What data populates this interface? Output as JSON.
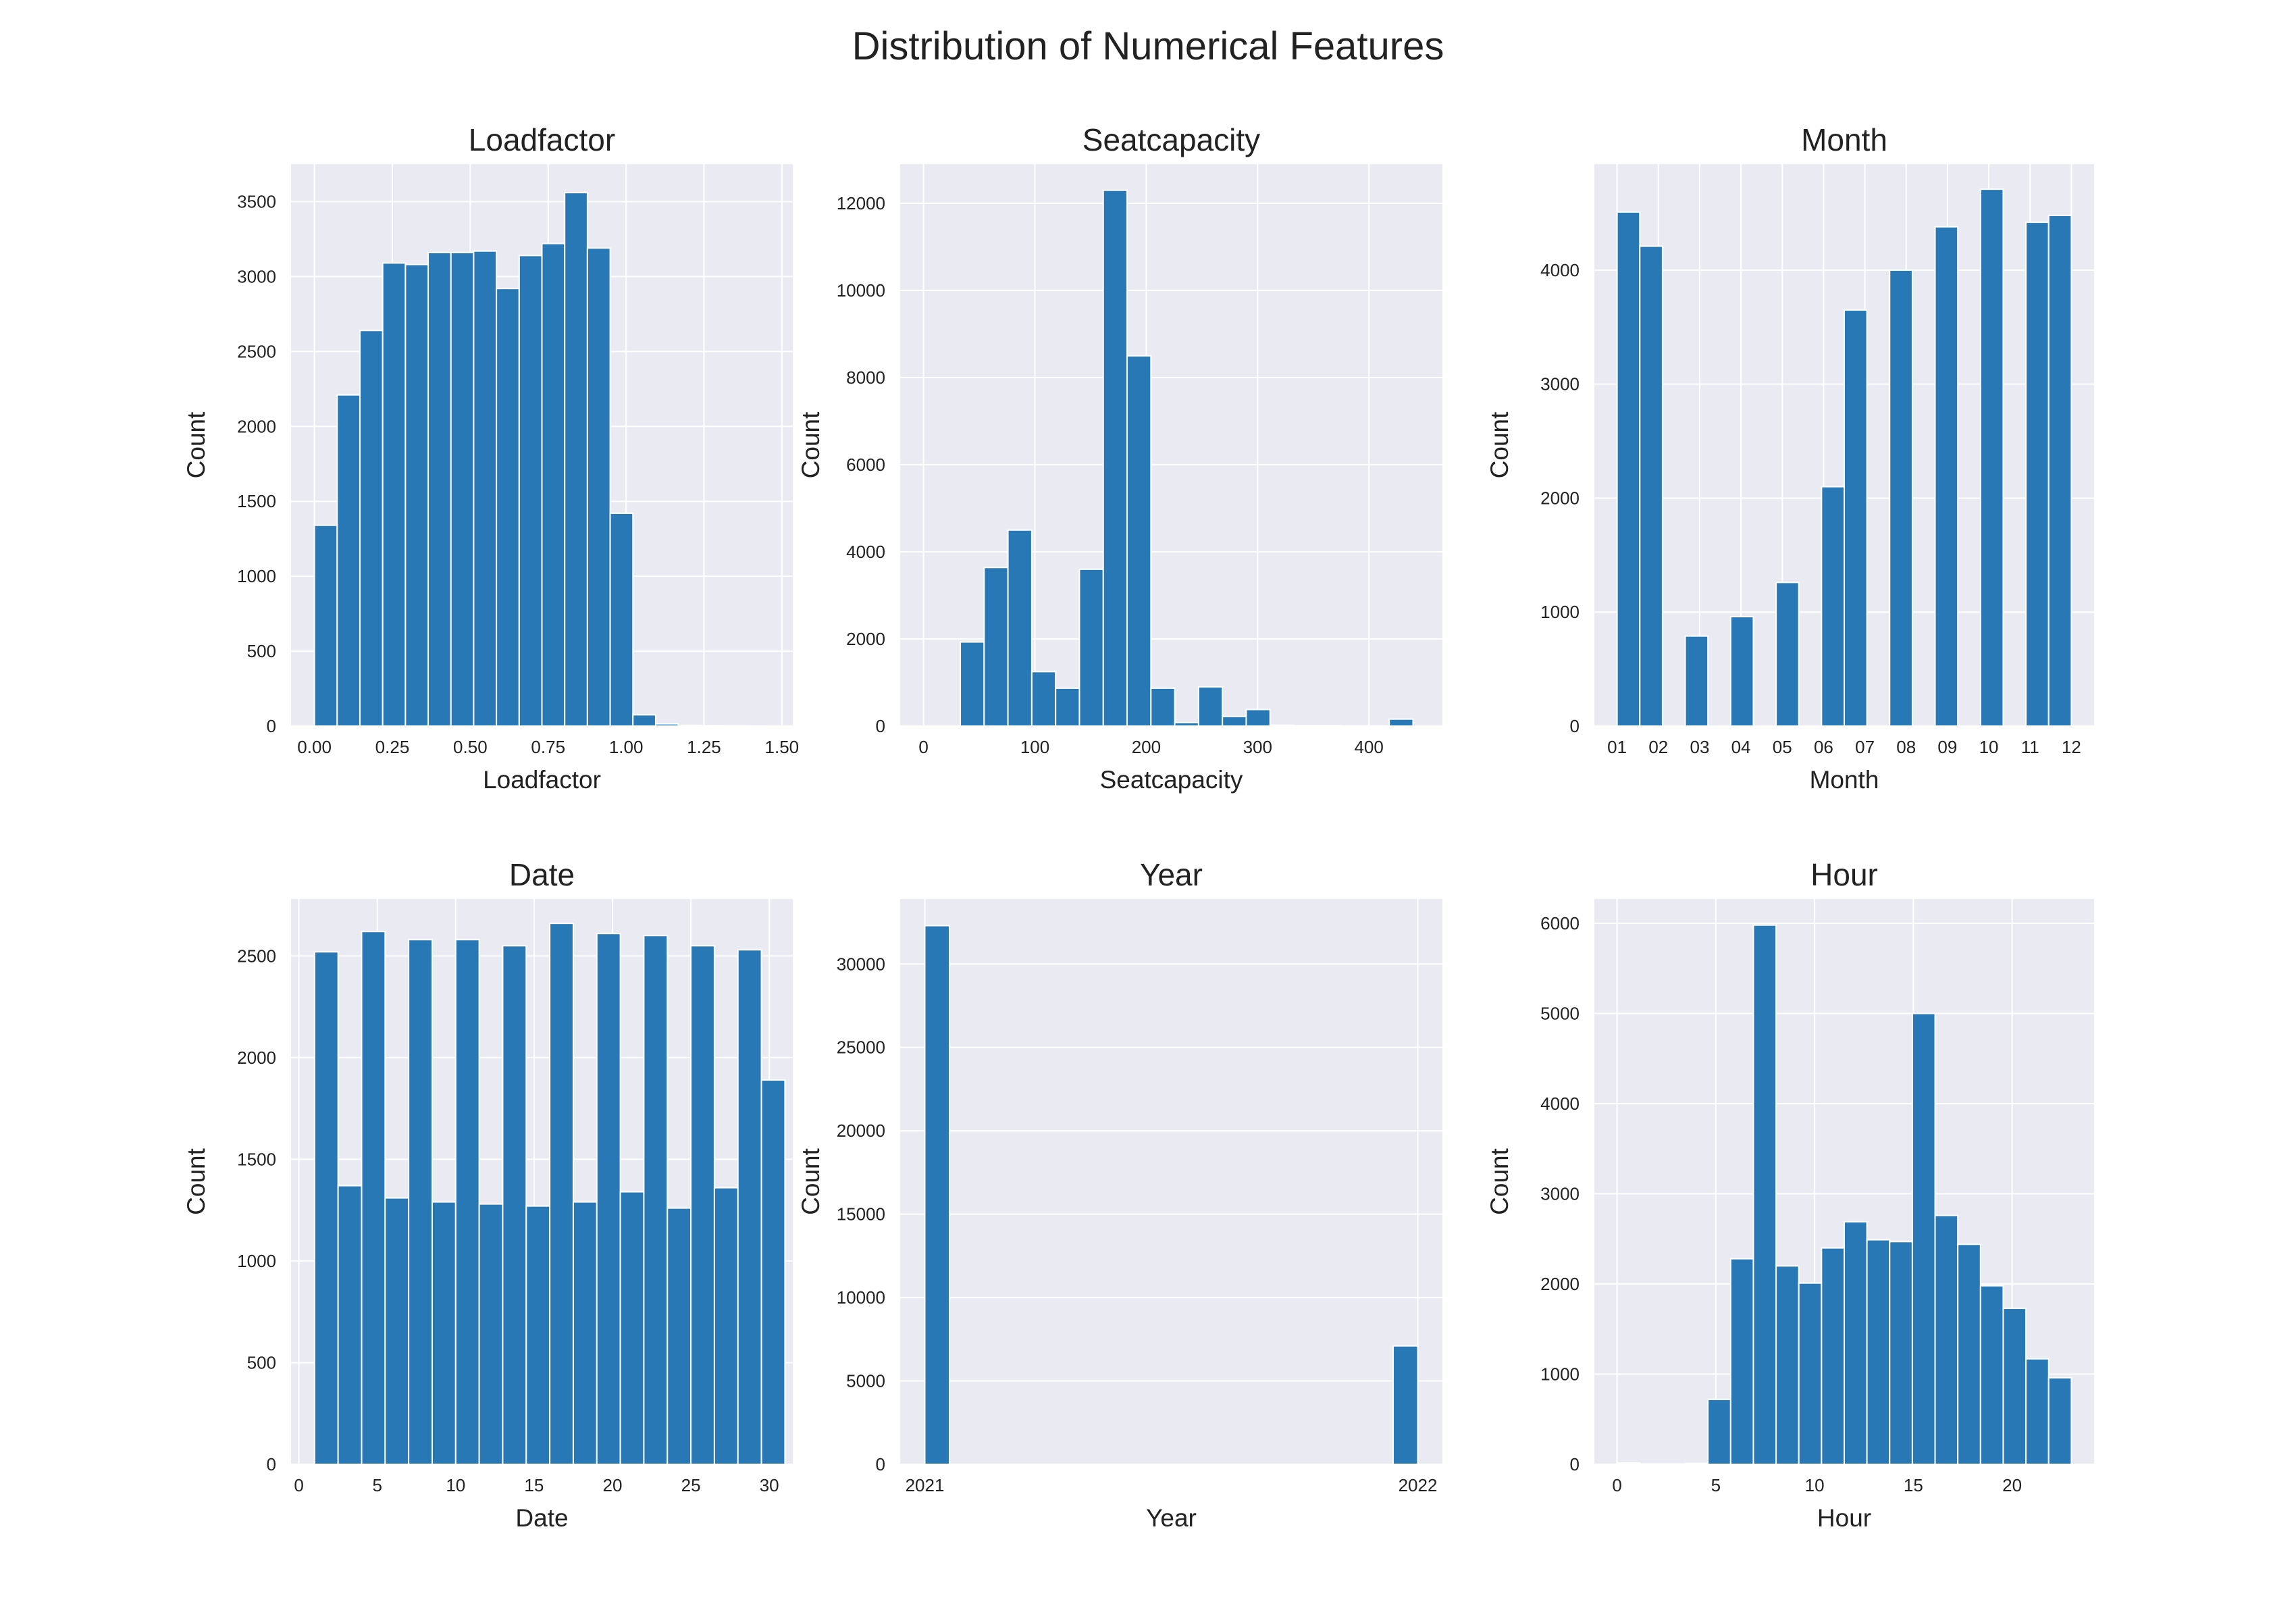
{
  "figure": {
    "title": "Distribution of Numerical Features"
  },
  "chart_data": [
    {
      "type": "bar",
      "title": "Loadfactor",
      "xlabel": "Loadfactor",
      "ylabel": "Count",
      "xlim": [
        -0.075,
        1.535
      ],
      "ylim": [
        0,
        3750
      ],
      "xticks": [
        {
          "v": 0.0,
          "label": "0.00"
        },
        {
          "v": 0.25,
          "label": "0.25"
        },
        {
          "v": 0.5,
          "label": "0.50"
        },
        {
          "v": 0.75,
          "label": "0.75"
        },
        {
          "v": 1.0,
          "label": "1.00"
        },
        {
          "v": 1.25,
          "label": "1.25"
        },
        {
          "v": 1.5,
          "label": "1.50"
        }
      ],
      "yticks": [
        {
          "v": 0,
          "label": "0"
        },
        {
          "v": 500,
          "label": "500"
        },
        {
          "v": 1000,
          "label": "1000"
        },
        {
          "v": 1500,
          "label": "1500"
        },
        {
          "v": 2000,
          "label": "2000"
        },
        {
          "v": 2500,
          "label": "2500"
        },
        {
          "v": 3000,
          "label": "3000"
        },
        {
          "v": 3500,
          "label": "3500"
        }
      ],
      "bins": [
        {
          "x0": 0.0,
          "x1": 0.073,
          "count": 1340
        },
        {
          "x0": 0.073,
          "x1": 0.146,
          "count": 2210
        },
        {
          "x0": 0.146,
          "x1": 0.219,
          "count": 2640
        },
        {
          "x0": 0.219,
          "x1": 0.292,
          "count": 3090
        },
        {
          "x0": 0.292,
          "x1": 0.365,
          "count": 3080
        },
        {
          "x0": 0.365,
          "x1": 0.438,
          "count": 3160
        },
        {
          "x0": 0.438,
          "x1": 0.511,
          "count": 3160
        },
        {
          "x0": 0.511,
          "x1": 0.584,
          "count": 3170
        },
        {
          "x0": 0.584,
          "x1": 0.657,
          "count": 2920
        },
        {
          "x0": 0.657,
          "x1": 0.73,
          "count": 3140
        },
        {
          "x0": 0.73,
          "x1": 0.803,
          "count": 3220
        },
        {
          "x0": 0.803,
          "x1": 0.876,
          "count": 3560
        },
        {
          "x0": 0.876,
          "x1": 0.949,
          "count": 3190
        },
        {
          "x0": 0.949,
          "x1": 1.022,
          "count": 1420
        },
        {
          "x0": 1.022,
          "x1": 1.095,
          "count": 75
        },
        {
          "x0": 1.095,
          "x1": 1.168,
          "count": 15
        },
        {
          "x0": 1.168,
          "x1": 1.241,
          "count": 5
        },
        {
          "x0": 1.241,
          "x1": 1.314,
          "count": 3
        },
        {
          "x0": 1.314,
          "x1": 1.387,
          "count": 2
        },
        {
          "x0": 1.387,
          "x1": 1.46,
          "count": 1
        }
      ]
    },
    {
      "type": "bar",
      "title": "Seatcapacity",
      "xlabel": "Seatcapacity",
      "ylabel": "Count",
      "xlim": [
        -21,
        466
      ],
      "ylim": [
        0,
        12900
      ],
      "xticks": [
        {
          "v": 0,
          "label": "0"
        },
        {
          "v": 100,
          "label": "100"
        },
        {
          "v": 200,
          "label": "200"
        },
        {
          "v": 300,
          "label": "300"
        },
        {
          "v": 400,
          "label": "400"
        }
      ],
      "yticks": [
        {
          "v": 0,
          "label": "0"
        },
        {
          "v": 2000,
          "label": "2000"
        },
        {
          "v": 4000,
          "label": "4000"
        },
        {
          "v": 6000,
          "label": "6000"
        },
        {
          "v": 8000,
          "label": "8000"
        },
        {
          "v": 10000,
          "label": "10000"
        },
        {
          "v": 12000,
          "label": "12000"
        }
      ],
      "bins": [
        {
          "x0": 33,
          "x1": 54.4,
          "count": 1930
        },
        {
          "x0": 54.4,
          "x1": 75.8,
          "count": 3640
        },
        {
          "x0": 75.8,
          "x1": 97.2,
          "count": 4500
        },
        {
          "x0": 97.2,
          "x1": 118.6,
          "count": 1250
        },
        {
          "x0": 118.6,
          "x1": 140,
          "count": 870
        },
        {
          "x0": 140,
          "x1": 161.4,
          "count": 3600
        },
        {
          "x0": 161.4,
          "x1": 182.8,
          "count": 12300
        },
        {
          "x0": 182.8,
          "x1": 204.2,
          "count": 8500
        },
        {
          "x0": 204.2,
          "x1": 225.6,
          "count": 870
        },
        {
          "x0": 225.6,
          "x1": 247,
          "count": 80
        },
        {
          "x0": 247,
          "x1": 268.4,
          "count": 900
        },
        {
          "x0": 268.4,
          "x1": 289.8,
          "count": 220
        },
        {
          "x0": 289.8,
          "x1": 311.2,
          "count": 380
        },
        {
          "x0": 311.2,
          "x1": 332.6,
          "count": 20
        },
        {
          "x0": 332.6,
          "x1": 354,
          "count": 10
        },
        {
          "x0": 354,
          "x1": 375.4,
          "count": 10
        },
        {
          "x0": 375.4,
          "x1": 396.8,
          "count": 5
        },
        {
          "x0": 396.8,
          "x1": 418.2,
          "count": 5
        },
        {
          "x0": 418.2,
          "x1": 439.6,
          "count": 160
        }
      ]
    },
    {
      "type": "bar",
      "title": "Month",
      "xlabel": "Month",
      "ylabel": "Count",
      "xlim": [
        -0.55,
        11.55
      ],
      "ylim": [
        0,
        4930
      ],
      "xticks": [
        {
          "v": 0,
          "label": "01"
        },
        {
          "v": 1,
          "label": "02"
        },
        {
          "v": 2,
          "label": "03"
        },
        {
          "v": 3,
          "label": "04"
        },
        {
          "v": 4,
          "label": "05"
        },
        {
          "v": 5,
          "label": "06"
        },
        {
          "v": 6,
          "label": "07"
        },
        {
          "v": 7,
          "label": "08"
        },
        {
          "v": 8,
          "label": "09"
        },
        {
          "v": 9,
          "label": "10"
        },
        {
          "v": 10,
          "label": "11"
        },
        {
          "v": 11,
          "label": "12"
        }
      ],
      "yticks": [
        {
          "v": 0,
          "label": "0"
        },
        {
          "v": 1000,
          "label": "1000"
        },
        {
          "v": 2000,
          "label": "2000"
        },
        {
          "v": 3000,
          "label": "3000"
        },
        {
          "v": 4000,
          "label": "4000"
        }
      ],
      "bins": [
        {
          "x0": 0.0,
          "x1": 0.55,
          "count": 4510
        },
        {
          "x0": 0.55,
          "x1": 1.1,
          "count": 4210
        },
        {
          "x0": 1.65,
          "x1": 2.2,
          "count": 790
        },
        {
          "x0": 2.75,
          "x1": 3.3,
          "count": 960
        },
        {
          "x0": 3.85,
          "x1": 4.4,
          "count": 1260
        },
        {
          "x0": 4.95,
          "x1": 5.5,
          "count": 2100
        },
        {
          "x0": 5.5,
          "x1": 6.05,
          "count": 3650
        },
        {
          "x0": 6.6,
          "x1": 7.15,
          "count": 4000
        },
        {
          "x0": 7.7,
          "x1": 8.25,
          "count": 4380
        },
        {
          "x0": 8.8,
          "x1": 9.35,
          "count": 4710
        },
        {
          "x0": 9.9,
          "x1": 10.45,
          "count": 4420
        },
        {
          "x0": 10.45,
          "x1": 11.0,
          "count": 4480
        }
      ]
    },
    {
      "type": "bar",
      "title": "Date",
      "xlabel": "Date",
      "ylabel": "Count",
      "xlim": [
        -0.5,
        31.5
      ],
      "ylim": [
        0,
        2780
      ],
      "xticks": [
        {
          "v": 0,
          "label": "0"
        },
        {
          "v": 5,
          "label": "5"
        },
        {
          "v": 10,
          "label": "10"
        },
        {
          "v": 15,
          "label": "15"
        },
        {
          "v": 20,
          "label": "20"
        },
        {
          "v": 25,
          "label": "25"
        },
        {
          "v": 30,
          "label": "30"
        }
      ],
      "yticks": [
        {
          "v": 0,
          "label": "0"
        },
        {
          "v": 500,
          "label": "500"
        },
        {
          "v": 1000,
          "label": "1000"
        },
        {
          "v": 1500,
          "label": "1500"
        },
        {
          "v": 2000,
          "label": "2000"
        },
        {
          "v": 2500,
          "label": "2500"
        }
      ],
      "bins": [
        {
          "x0": 1.0,
          "x1": 2.5,
          "count": 2520
        },
        {
          "x0": 2.5,
          "x1": 4.0,
          "count": 1370
        },
        {
          "x0": 4.0,
          "x1": 5.5,
          "count": 2620
        },
        {
          "x0": 5.5,
          "x1": 7.0,
          "count": 1310
        },
        {
          "x0": 7.0,
          "x1": 8.5,
          "count": 2580
        },
        {
          "x0": 8.5,
          "x1": 10.0,
          "count": 1290
        },
        {
          "x0": 10.0,
          "x1": 11.5,
          "count": 2580
        },
        {
          "x0": 11.5,
          "x1": 13.0,
          "count": 1280
        },
        {
          "x0": 13.0,
          "x1": 14.5,
          "count": 2550
        },
        {
          "x0": 14.5,
          "x1": 16.0,
          "count": 1270
        },
        {
          "x0": 16.0,
          "x1": 17.5,
          "count": 2660
        },
        {
          "x0": 17.5,
          "x1": 19.0,
          "count": 1290
        },
        {
          "x0": 19.0,
          "x1": 20.5,
          "count": 2610
        },
        {
          "x0": 20.5,
          "x1": 22.0,
          "count": 1340
        },
        {
          "x0": 22.0,
          "x1": 23.5,
          "count": 2600
        },
        {
          "x0": 23.5,
          "x1": 25.0,
          "count": 1260
        },
        {
          "x0": 25.0,
          "x1": 26.5,
          "count": 2550
        },
        {
          "x0": 26.5,
          "x1": 28.0,
          "count": 1360
        },
        {
          "x0": 28.0,
          "x1": 29.5,
          "count": 2530
        },
        {
          "x0": 29.5,
          "x1": 31.0,
          "count": 1890
        }
      ]
    },
    {
      "type": "bar",
      "title": "Year",
      "xlabel": "Year",
      "ylabel": "Count",
      "xlim": [
        -0.05,
        1.05
      ],
      "ylim": [
        0,
        33900
      ],
      "xticks": [
        {
          "v": 0,
          "label": "2021"
        },
        {
          "v": 1,
          "label": "2022"
        }
      ],
      "yticks": [
        {
          "v": 0,
          "label": "0"
        },
        {
          "v": 5000,
          "label": "5000"
        },
        {
          "v": 10000,
          "label": "10000"
        },
        {
          "v": 15000,
          "label": "15000"
        },
        {
          "v": 20000,
          "label": "20000"
        },
        {
          "v": 25000,
          "label": "25000"
        },
        {
          "v": 30000,
          "label": "30000"
        }
      ],
      "bins": [
        {
          "x0": 0.0,
          "x1": 0.05,
          "count": 32300
        },
        {
          "x0": 0.95,
          "x1": 1.0,
          "count": 7100
        }
      ]
    },
    {
      "type": "bar",
      "title": "Hour",
      "xlabel": "Hour",
      "ylabel": "Count",
      "xlim": [
        -1.15,
        24.15
      ],
      "ylim": [
        0,
        6270
      ],
      "xticks": [
        {
          "v": 0,
          "label": "0"
        },
        {
          "v": 5,
          "label": "5"
        },
        {
          "v": 10,
          "label": "10"
        },
        {
          "v": 15,
          "label": "15"
        },
        {
          "v": 20,
          "label": "20"
        }
      ],
      "yticks": [
        {
          "v": 0,
          "label": "0"
        },
        {
          "v": 1000,
          "label": "1000"
        },
        {
          "v": 2000,
          "label": "2000"
        },
        {
          "v": 3000,
          "label": "3000"
        },
        {
          "v": 4000,
          "label": "4000"
        },
        {
          "v": 5000,
          "label": "5000"
        },
        {
          "v": 6000,
          "label": "6000"
        }
      ],
      "bins": [
        {
          "x0": 0.0,
          "x1": 1.15,
          "count": 15
        },
        {
          "x0": 1.15,
          "x1": 2.3,
          "count": 5
        },
        {
          "x0": 2.3,
          "x1": 3.45,
          "count": 5
        },
        {
          "x0": 3.45,
          "x1": 4.6,
          "count": 10
        },
        {
          "x0": 4.6,
          "x1": 5.75,
          "count": 720
        },
        {
          "x0": 5.75,
          "x1": 6.9,
          "count": 2280
        },
        {
          "x0": 6.9,
          "x1": 8.05,
          "count": 5980
        },
        {
          "x0": 8.05,
          "x1": 9.2,
          "count": 2200
        },
        {
          "x0": 9.2,
          "x1": 10.35,
          "count": 2010
        },
        {
          "x0": 10.35,
          "x1": 11.5,
          "count": 2400
        },
        {
          "x0": 11.5,
          "x1": 12.65,
          "count": 2690
        },
        {
          "x0": 12.65,
          "x1": 13.8,
          "count": 2490
        },
        {
          "x0": 13.8,
          "x1": 14.95,
          "count": 2470
        },
        {
          "x0": 14.95,
          "x1": 16.1,
          "count": 5000
        },
        {
          "x0": 16.1,
          "x1": 17.25,
          "count": 2760
        },
        {
          "x0": 17.25,
          "x1": 18.4,
          "count": 2440
        },
        {
          "x0": 18.4,
          "x1": 19.55,
          "count": 1980
        },
        {
          "x0": 19.55,
          "x1": 20.7,
          "count": 1730
        },
        {
          "x0": 20.7,
          "x1": 21.85,
          "count": 1170
        },
        {
          "x0": 21.85,
          "x1": 23.0,
          "count": 960
        }
      ]
    }
  ],
  "colors": {
    "bar": "#2878b5",
    "plot_background": "#eaeaf2",
    "grid": "#ffffff",
    "text": "#222222"
  }
}
